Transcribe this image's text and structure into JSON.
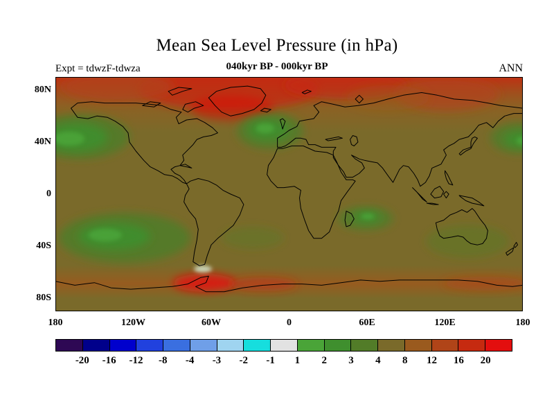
{
  "header": {
    "title": "Mean Sea Level Pressure (in hPa)",
    "subtitle": "040kyr BP - 000kyr BP",
    "experiment": "Expt = tdwzF-tdwza",
    "season": "ANN"
  },
  "map_axes": {
    "lat_ticks": [
      {
        "label": "80N",
        "lat": 80
      },
      {
        "label": "40N",
        "lat": 40
      },
      {
        "label": "0",
        "lat": 0
      },
      {
        "label": "40S",
        "lat": -40
      },
      {
        "label": "80S",
        "lat": -80
      }
    ],
    "lon_ticks": [
      {
        "label": "180",
        "lon": -180
      },
      {
        "label": "120W",
        "lon": -120
      },
      {
        "label": "60W",
        "lon": -60
      },
      {
        "label": "0",
        "lon": 0
      },
      {
        "label": "60E",
        "lon": 60
      },
      {
        "label": "120E",
        "lon": 120
      },
      {
        "label": "180",
        "lon": 180
      }
    ]
  },
  "colorbar": {
    "labels": [
      "-20",
      "-16",
      "-12",
      "-8",
      "-4",
      "-3",
      "-2",
      "-1",
      "1",
      "2",
      "3",
      "4",
      "8",
      "12",
      "16",
      "20"
    ],
    "colors": [
      "#2e0854",
      "#00008b",
      "#0000cd",
      "#2141de",
      "#3a6fe0",
      "#6f9fe8",
      "#9fd4f0",
      "#16dede",
      "#e2e2e2",
      "#4aa438",
      "#3f8f2e",
      "#527c28",
      "#7a6a2a",
      "#9a5a1e",
      "#b04418",
      "#c62a10",
      "#e30e0e"
    ]
  },
  "chart_data": {
    "type": "heatmap",
    "title": "Mean Sea Level Pressure (in hPa)",
    "subtitle": "040kyr BP - 000kyr BP",
    "experiment": "Expt = tdwzF-tdwza",
    "season": "ANN",
    "units": "hPa",
    "projection": "equirectangular world map with coastlines",
    "lon_range": [
      -180,
      180
    ],
    "lat_range": [
      -90,
      90
    ],
    "lon_tick_labels": [
      "180",
      "120W",
      "60W",
      "0",
      "60E",
      "120E",
      "180"
    ],
    "lat_tick_labels": [
      "80N",
      "40N",
      "0",
      "40S",
      "80S"
    ],
    "contour_levels": [
      -20,
      -16,
      -12,
      -8,
      -4,
      -3,
      -2,
      -1,
      1,
      2,
      3,
      4,
      8,
      12,
      16,
      20
    ],
    "palette": [
      "#2e0854",
      "#00008b",
      "#0000cd",
      "#2141de",
      "#3a6fe0",
      "#6f9fe8",
      "#9fd4f0",
      "#16dede",
      "#e2e2e2",
      "#4aa438",
      "#3f8f2e",
      "#527c28",
      "#7a6a2a",
      "#9a5a1e",
      "#b04418",
      "#c62a10",
      "#e30e0e"
    ],
    "legend_position": "bottom",
    "field_summary": [
      {
        "region": "Global background (most oceans and continents)",
        "value_hpa": "+4 to +8"
      },
      {
        "region": "Arctic Ocean and high northern latitudes",
        "value_hpa": "+8 to +16, locally +16 to +20 near northern Canada and Siberia"
      },
      {
        "region": "Northeast Pacific / Gulf of Alaska (~40-55N)",
        "value_hpa": "+1 to +4"
      },
      {
        "region": "North Atlantic / Western Europe (~45-60N)",
        "value_hpa": "+1 to +4"
      },
      {
        "region": "Northwest Pacific near the dateline (~40N)",
        "value_hpa": "+1 to +4"
      },
      {
        "region": "South Pacific mid-latitudes (~30-50S)",
        "value_hpa": "+1 to +4"
      },
      {
        "region": "Southwest Indian Ocean near Madagascar",
        "value_hpa": "+2 to +4"
      },
      {
        "region": "Antarctic coastal ring (~60-70S)",
        "value_hpa": "+8 to +16"
      },
      {
        "region": "Antarctic Peninsula / Bellingshausen Sea",
        "value_hpa": "+12 to +20"
      },
      {
        "region": "South of South America tip (~55S)",
        "value_hpa": "-1 to +1 (near zero)"
      }
    ]
  }
}
